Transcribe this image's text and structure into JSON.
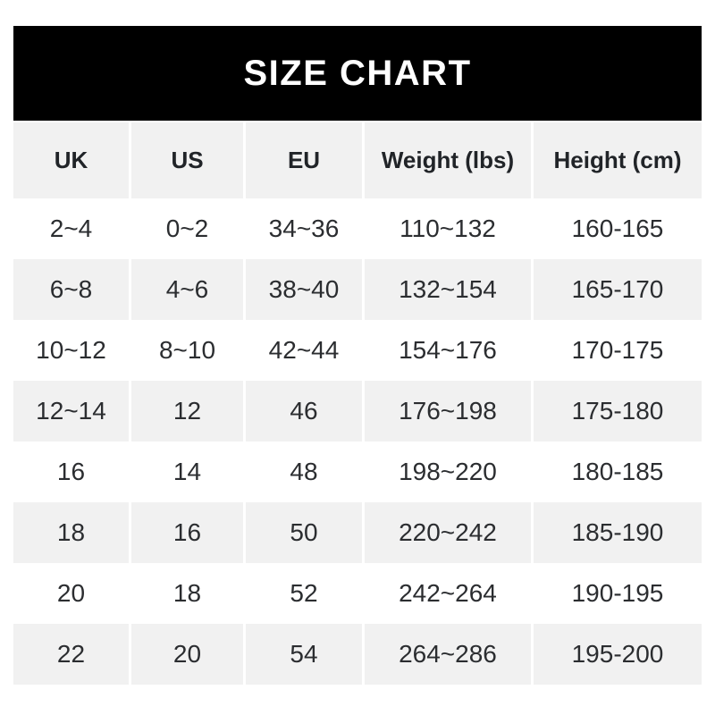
{
  "chart_data": {
    "type": "table",
    "title": "SIZE CHART",
    "columns": [
      "UK",
      "US",
      "EU",
      "Weight (lbs)",
      "Height (cm)"
    ],
    "rows": [
      [
        "2~4",
        "0~2",
        "34~36",
        "110~132",
        "160-165"
      ],
      [
        "6~8",
        "4~6",
        "38~40",
        "132~154",
        "165-170"
      ],
      [
        "10~12",
        "8~10",
        "42~44",
        "154~176",
        "170-175"
      ],
      [
        "12~14",
        "12",
        "46",
        "176~198",
        "175-180"
      ],
      [
        "16",
        "14",
        "48",
        "198~220",
        "180-185"
      ],
      [
        "18",
        "16",
        "50",
        "220~242",
        "185-190"
      ],
      [
        "20",
        "18",
        "52",
        "242~264",
        "190-195"
      ],
      [
        "22",
        "20",
        "54",
        "264~286",
        "195-200"
      ]
    ],
    "layout": {
      "stripe_pattern": "header shaded; data rows alternate white/shaded starting white",
      "grid": "no borders, 3px white gaps between columns"
    }
  },
  "colors": {
    "page_bg": "#ffffff",
    "title_bar_bg": "#000000",
    "title_bar_text": "#ffffff",
    "stripe_bg": "#f1f1f1",
    "header_text": "#212428",
    "cell_text": "#2b2d30"
  }
}
